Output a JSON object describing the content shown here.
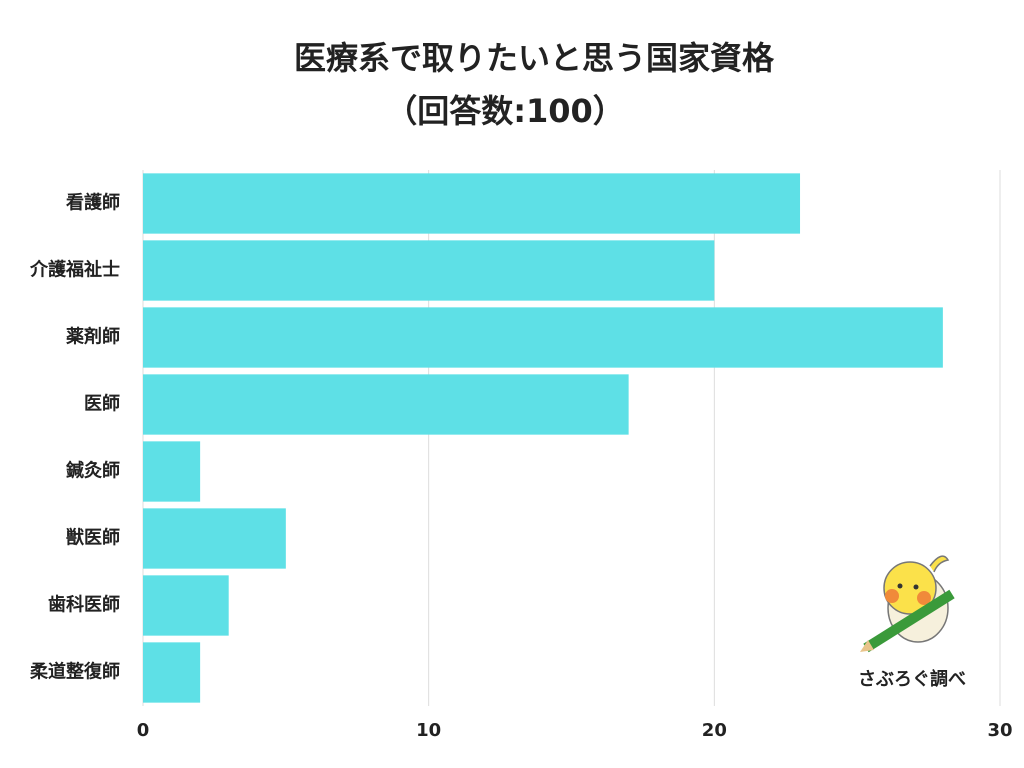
{
  "chart_data": {
    "type": "bar",
    "orientation": "horizontal",
    "title": "医療系で取りたいと思う国家資格",
    "subtitle": "（回答数:100）",
    "categories": [
      "看護師",
      "介護福祉士",
      "薬剤師",
      "医師",
      "鍼灸師",
      "獣医師",
      "歯科医師",
      "柔道整復師"
    ],
    "values": [
      23,
      20,
      28,
      17,
      2,
      5,
      3,
      2
    ],
    "color": "#5ee0e6",
    "xlim": [
      0,
      30
    ],
    "xticks": [
      0,
      10,
      20,
      30
    ],
    "grid": true,
    "watermark": "さぶろぐ調べ"
  }
}
